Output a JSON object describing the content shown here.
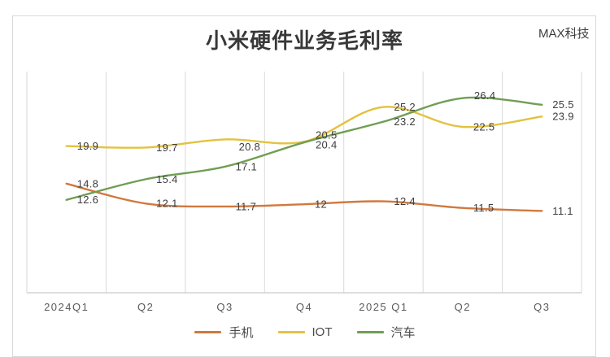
{
  "watermark": "MAX科技",
  "chart_data": {
    "type": "line",
    "title": "小米硬件业务毛利率",
    "categories": [
      "2024Q1",
      "Q2",
      "Q3",
      "Q4",
      "2025 Q1",
      "Q2",
      "Q3"
    ],
    "series": [
      {
        "name": "手机",
        "color": "#D0793E",
        "values": [
          14.8,
          12.1,
          11.7,
          12,
          12.4,
          11.5,
          11.1
        ]
      },
      {
        "name": "IOT",
        "color": "#E3C23F",
        "values": [
          19.9,
          19.7,
          20.8,
          20.5,
          25.2,
          22.5,
          23.9
        ]
      },
      {
        "name": "汽车",
        "color": "#6F9E54",
        "values": [
          12.6,
          15.4,
          17.1,
          20.4,
          23.2,
          26.4,
          25.5
        ]
      }
    ],
    "ylim": [
      0,
      30
    ],
    "grid": "vertical-only",
    "legend_position": "bottom",
    "data_labels": true,
    "line_style": "smooth",
    "colors": {
      "gridline": "#D9D9D9",
      "axis": "#C9C9C9",
      "data_label": "#3D3D3D",
      "axis_label": "#595959"
    }
  }
}
